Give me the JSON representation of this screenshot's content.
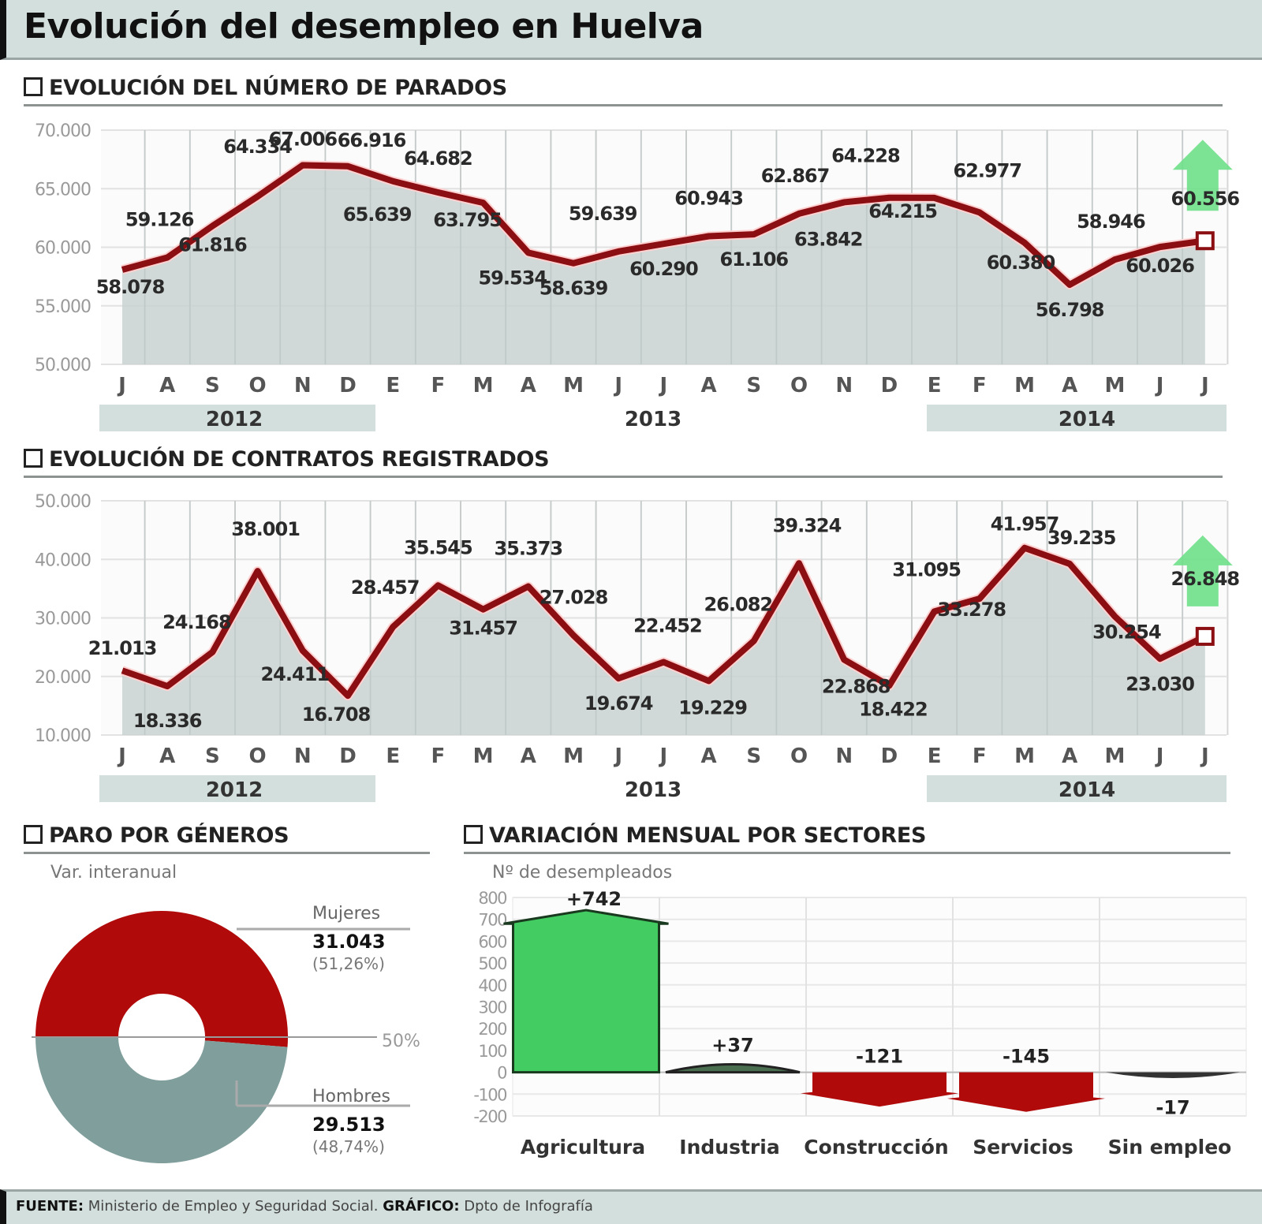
{
  "title": "Evolución del desempleo en Huelva",
  "sections": {
    "parados": "EVOLUCIÓN DEL NÚMERO DE PARADOS",
    "contratos": "EVOLUCIÓN DE CONTRATOS REGISTRADOS",
    "generos": "PARO POR GÉNEROS",
    "sectores": "VARIACIÓN MENSUAL POR SECTORES"
  },
  "generos_sub": "Var. interanual",
  "sectores_sub": "Nº de desempleados",
  "years": [
    "2012",
    "2013",
    "2014"
  ],
  "footer": {
    "source_label": "FUENTE:",
    "source": "Ministerio de Empleo y Seguridad Social.",
    "graphic_label": "GRÁFICO:",
    "graphic": "Dpto de Infografía"
  },
  "colors": {
    "line": "#8b0e12",
    "area": "#c8d2d0",
    "grid": "#d9d9d9",
    "header_bg": "#d3dfdc",
    "green": "#42cc62",
    "red": "#b00a0a",
    "grey_donut": "#7f9e9c"
  },
  "chart_data": [
    {
      "type": "area",
      "title": "EVOLUCIÓN DEL NÚMERO DE PARADOS",
      "categories": [
        "J",
        "A",
        "S",
        "O",
        "N",
        "D",
        "E",
        "F",
        "M",
        "A",
        "M",
        "J",
        "J",
        "A",
        "S",
        "O",
        "N",
        "D",
        "E",
        "F",
        "M",
        "A",
        "M",
        "J",
        "J"
      ],
      "year_groups": [
        {
          "label": "2012",
          "from": 0,
          "to": 5
        },
        {
          "label": "2013",
          "from": 6,
          "to": 17
        },
        {
          "label": "2014",
          "from": 18,
          "to": 24
        }
      ],
      "values": [
        58078,
        59126,
        61816,
        64334,
        67006,
        66916,
        65639,
        64682,
        63795,
        59534,
        58639,
        59639,
        60290,
        60943,
        61106,
        62867,
        63842,
        64228,
        64215,
        62977,
        60380,
        56798,
        58946,
        60026,
        60556
      ],
      "yticks": [
        50000,
        55000,
        60000,
        65000,
        70000
      ],
      "ytick_labels": [
        "50.000",
        "55.000",
        "60.000",
        "65.000",
        "70.000"
      ],
      "ylim": [
        50000,
        70000
      ],
      "labels": [
        "58.078",
        "59.126",
        "61.816",
        "64.334",
        "67.006",
        "66.916",
        "65.639",
        "64.682",
        "63.795",
        "59.534",
        "58.639",
        "59.639",
        "60.290",
        "60.943",
        "61.106",
        "62.867",
        "63.842",
        "64.228",
        "64.215",
        "62.977",
        "60.380",
        "56.798",
        "58.946",
        "60.026",
        "60.556"
      ],
      "last_marker": "up-arrow",
      "grid": true
    },
    {
      "type": "area",
      "title": "EVOLUCIÓN DE CONTRATOS REGISTRADOS",
      "categories": [
        "J",
        "A",
        "S",
        "O",
        "N",
        "D",
        "E",
        "F",
        "M",
        "A",
        "M",
        "J",
        "J",
        "A",
        "S",
        "O",
        "N",
        "D",
        "E",
        "F",
        "M",
        "A",
        "M",
        "J",
        "J"
      ],
      "year_groups": [
        {
          "label": "2012",
          "from": 0,
          "to": 5
        },
        {
          "label": "2013",
          "from": 6,
          "to": 17
        },
        {
          "label": "2014",
          "from": 18,
          "to": 24
        }
      ],
      "values": [
        21013,
        18336,
        24168,
        38001,
        24411,
        16708,
        28457,
        35545,
        31457,
        35373,
        27028,
        19674,
        22452,
        19229,
        26082,
        39324,
        22868,
        18422,
        31095,
        33278,
        41957,
        39235,
        30254,
        23030,
        26848
      ],
      "yticks": [
        10000,
        20000,
        30000,
        40000,
        50000
      ],
      "ytick_labels": [
        "10.000",
        "20.000",
        "30.000",
        "40.000",
        "50.000"
      ],
      "ylim": [
        10000,
        50000
      ],
      "labels": [
        "21.013",
        "18.336",
        "24.168",
        "38.001",
        "24.411",
        "16.708",
        "28.457",
        "35.545",
        "31.457",
        "35.373",
        "27.028",
        "19.674",
        "22.452",
        "19.229",
        "26.082",
        "39.324",
        "22.868",
        "18.422",
        "31.095",
        "33.278",
        "41.957",
        "39.235",
        "30.254",
        "23.030",
        "26.848"
      ],
      "last_marker": "up-arrow",
      "grid": true
    },
    {
      "type": "pie",
      "title": "PARO POR GÉNEROS",
      "subtitle": "Var. interanual",
      "slices": [
        {
          "label": "Mujeres",
          "value": 31043,
          "value_label": "31.043",
          "pct_label": "(51,26%)",
          "color": "#b00a0a"
        },
        {
          "label": "Hombres",
          "value": 29513,
          "value_label": "29.513",
          "pct_label": "(48,74%)",
          "color": "#7f9e9c"
        }
      ],
      "annotation": "50%",
      "donut": true
    },
    {
      "type": "bar",
      "title": "VARIACIÓN MENSUAL POR SECTORES",
      "ylabel": "Nº de desempleados",
      "categories": [
        "Agricultura",
        "Industria",
        "Construcción",
        "Servicios",
        "Sin empleo"
      ],
      "values": [
        742,
        37,
        -121,
        -145,
        -17
      ],
      "value_labels": [
        "+742",
        "+37",
        "-121",
        "-145",
        "-17"
      ],
      "yticks": [
        -200,
        -100,
        0,
        100,
        200,
        300,
        400,
        500,
        600,
        700,
        800
      ],
      "ylim": [
        -200,
        800
      ],
      "grid": true
    }
  ]
}
